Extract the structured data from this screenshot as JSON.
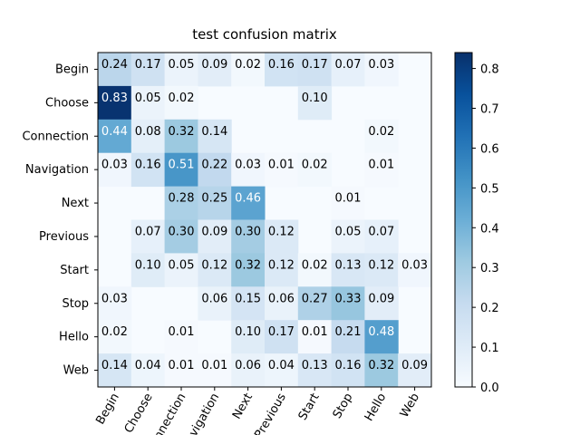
{
  "chart_data": {
    "type": "heatmap",
    "title": "test confusion matrix",
    "x_categories": [
      "Begin",
      "Choose",
      "Connection",
      "Navigation",
      "Next",
      "Previous",
      "Start",
      "Stop",
      "Hello",
      "Web"
    ],
    "y_categories": [
      "Begin",
      "Choose",
      "Connection",
      "Navigation",
      "Next",
      "Previous",
      "Start",
      "Stop",
      "Hello",
      "Web"
    ],
    "values": [
      [
        0.24,
        0.17,
        0.05,
        0.09,
        0.02,
        0.16,
        0.17,
        0.07,
        0.03,
        null
      ],
      [
        0.83,
        0.05,
        0.02,
        null,
        null,
        null,
        0.1,
        null,
        null,
        null
      ],
      [
        0.44,
        0.08,
        0.32,
        0.14,
        null,
        null,
        null,
        null,
        0.02,
        null
      ],
      [
        0.03,
        0.16,
        0.51,
        0.22,
        0.03,
        0.01,
        0.02,
        null,
        0.01,
        null
      ],
      [
        null,
        null,
        0.28,
        0.25,
        0.46,
        null,
        null,
        0.01,
        null,
        null
      ],
      [
        null,
        0.07,
        0.3,
        0.09,
        0.3,
        0.12,
        null,
        0.05,
        0.07,
        null
      ],
      [
        null,
        0.1,
        0.05,
        0.12,
        0.32,
        0.12,
        0.02,
        0.13,
        0.12,
        0.03
      ],
      [
        0.03,
        null,
        null,
        0.06,
        0.15,
        0.06,
        0.27,
        0.33,
        0.09,
        null
      ],
      [
        0.02,
        null,
        0.01,
        null,
        0.1,
        0.17,
        0.01,
        0.21,
        0.48,
        null
      ],
      [
        0.14,
        0.04,
        0.01,
        0.01,
        0.06,
        0.04,
        0.13,
        0.16,
        0.32,
        0.09
      ]
    ],
    "value_labels": [
      [
        "0.24",
        "0.17",
        "0.05",
        "0.09",
        "0.02",
        "0.16",
        "0.17",
        "0.07",
        "0.03",
        null
      ],
      [
        "0.83",
        "0.05",
        "0.02",
        null,
        null,
        null,
        "0.10",
        null,
        null,
        null
      ],
      [
        "0.44",
        "0.08",
        "0.32",
        "0.14",
        null,
        null,
        null,
        null,
        "0.02",
        null
      ],
      [
        "0.03",
        "0.16",
        "0.51",
        "0.22",
        "0.03",
        "0.01",
        "0.02",
        null,
        "0.01",
        null
      ],
      [
        null,
        null,
        "0.28",
        "0.25",
        "0.46",
        null,
        null,
        "0.01",
        null,
        null
      ],
      [
        null,
        "0.07",
        "0.30",
        "0.09",
        "0.30",
        "0.12",
        null,
        "0.05",
        "0.07",
        null
      ],
      [
        null,
        "0.10",
        "0.05",
        "0.12",
        "0.32",
        "0.12",
        "0.02",
        "0.13",
        "0.12",
        "0.03"
      ],
      [
        "0.03",
        null,
        null,
        "0.06",
        "0.15",
        "0.06",
        "0.27",
        "0.33",
        "0.09",
        null
      ],
      [
        "0.02",
        null,
        "0.01",
        null,
        "0.10",
        "0.17",
        "0.01",
        "0.21",
        "0.48",
        null
      ],
      [
        "0.14",
        "0.04",
        "0.01",
        "0.01",
        "0.06",
        "0.04",
        "0.13",
        "0.16",
        "0.32",
        "0.09"
      ]
    ],
    "colorscale": [
      "#f7fbff",
      "#deebf7",
      "#c6dbef",
      "#9ecae1",
      "#6baed6",
      "#4292c6",
      "#2171b5",
      "#08519c",
      "#08306b"
    ],
    "clim": [
      0,
      0.84
    ],
    "cticks": [
      {
        "value": 0,
        "label": "0.0"
      },
      0.1,
      0.2,
      0.3,
      0.4,
      0.5,
      0.6,
      0.7,
      0.8
    ]
  }
}
